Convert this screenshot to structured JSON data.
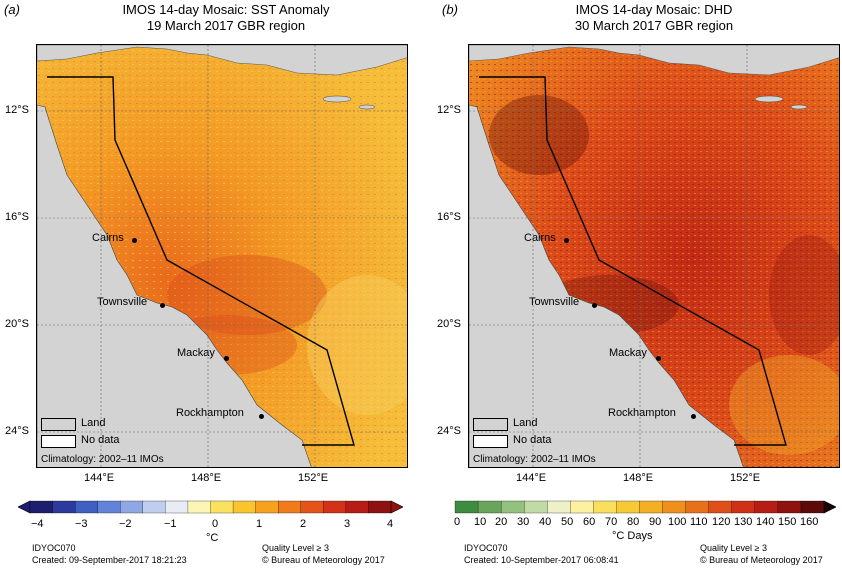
{
  "left": {
    "letter": "a",
    "title1": "IMOS 14-day Mosaic: SST Anomaly",
    "title2": "19 March 2017 GBR region",
    "lat_ticks": [
      "12°S",
      "16°S",
      "20°S",
      "24°S"
    ],
    "lon_ticks": [
      "144°E",
      "148°E",
      "152°E"
    ],
    "legend_land": "Land",
    "legend_nodata": "No data",
    "climatology": "Climatology: 2002–11 IMOs",
    "cities": [
      "Cairns",
      "Townsville",
      "Mackay",
      "Rockhampton"
    ],
    "colorbar_ticks": [
      "−4",
      "−3",
      "−2",
      "−1",
      "0",
      "1",
      "2",
      "3",
      "4"
    ],
    "colorbar_unit": "°C",
    "colorbar_colors": [
      "#1d1e6e",
      "#2b3a9c",
      "#3f5fc1",
      "#6383d8",
      "#8fa7e4",
      "#bfcdee",
      "#e8ecf4",
      "#fbf6b4",
      "#fae25f",
      "#f9c52f",
      "#f6a21e",
      "#ef7b1a",
      "#e45319",
      "#d13218",
      "#b51d16",
      "#8e1212"
    ],
    "product": "IDYOC070",
    "created": "Created: 09-September-2017 18:21:23",
    "quality": "Quality Level ≥ 3",
    "copyright": "© Bureau of Meteorology 2017",
    "colors": {
      "ocean": "#f3b63c",
      "land": "#d3d3d3"
    }
  },
  "right": {
    "letter": "b",
    "title1": "IMOS 14-day Mosaic: DHD",
    "title2": "30 March 2017 GBR region",
    "lat_ticks": [
      "12°S",
      "16°S",
      "20°S",
      "24°S"
    ],
    "lon_ticks": [
      "144°E",
      "148°E",
      "152°E"
    ],
    "legend_land": "Land",
    "legend_nodata": "No data",
    "climatology": "Climatology: 2002–11 IMOs",
    "cities": [
      "Cairns",
      "Townsville",
      "Mackay",
      "Rockhampton"
    ],
    "colorbar_ticks": [
      "0",
      "10",
      "20",
      "30",
      "40",
      "50",
      "60",
      "70",
      "80",
      "90",
      "100",
      "110",
      "120",
      "130",
      "140",
      "150",
      "160"
    ],
    "colorbar_unit": "°C Days",
    "colorbar_colors": [
      "#3e8c3f",
      "#6aa55c",
      "#95c17f",
      "#c1dba7",
      "#eef0c7",
      "#fbf1a0",
      "#f9df5c",
      "#f7c935",
      "#f4af24",
      "#f0901c",
      "#e8701a",
      "#df4f19",
      "#cf3116",
      "#b41e14",
      "#8e1210",
      "#5c0a0a"
    ],
    "product": "IDYOC070",
    "created": "Created: 10-September-2017 06:08:41",
    "quality": "Quality Level ≥ 3",
    "copyright": "© Bureau of Meteorology 2017",
    "colors": {
      "ocean": "#d0401a",
      "land": "#d3d3d3"
    }
  }
}
